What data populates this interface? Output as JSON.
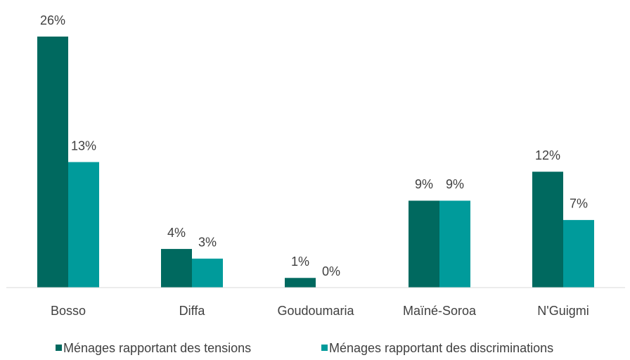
{
  "chart_data": {
    "type": "bar",
    "categories": [
      "Bosso",
      "Diffa",
      "Goudoumaria",
      "Maïné-Soroa",
      "N'Guigmi"
    ],
    "series": [
      {
        "name": "Ménages rapportant des tensions",
        "color": "#00695f",
        "values": [
          26,
          4,
          1,
          9,
          12
        ],
        "value_labels": [
          "26%",
          "4%",
          "1%",
          "9%",
          "12%"
        ]
      },
      {
        "name": "Ménages rapportant des discriminations",
        "color": "#009b9b",
        "values": [
          13,
          3,
          0,
          9,
          7
        ],
        "value_labels": [
          "13%",
          "3%",
          "0%",
          "9%",
          "7%"
        ]
      }
    ],
    "ylim": [
      0,
      26
    ]
  }
}
